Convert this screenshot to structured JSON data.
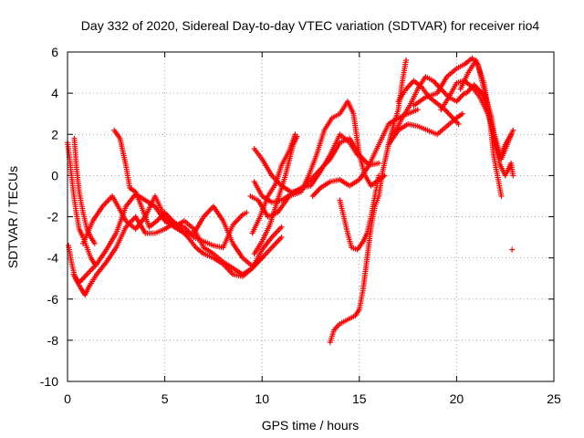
{
  "chart_data": {
    "type": "scatter",
    "title": "Day 332 of 2020, Sidereal Day-to-day VTEC variation (SDTVAR) for receiver rio4",
    "xlabel": "GPS time / hours",
    "ylabel": "SDTVAR / TECUs",
    "xlim": [
      0,
      25
    ],
    "ylim": [
      -10,
      6
    ],
    "x_ticks": [
      0,
      5,
      10,
      15,
      20,
      25
    ],
    "y_ticks": [
      -10,
      -8,
      -6,
      -4,
      -2,
      0,
      2,
      4,
      6
    ],
    "x_tick_labels": [
      "0",
      "5",
      "10",
      "15",
      "20",
      "25"
    ],
    "y_tick_labels": [
      "-10",
      "-8",
      "-6",
      "-4",
      "-2",
      "0",
      "2",
      "4",
      "6"
    ],
    "grid": true,
    "marker": "plus",
    "color": "#ff0000",
    "tracks": [
      [
        [
          0.0,
          1.6
        ],
        [
          0.15,
          0.5
        ],
        [
          0.3,
          -0.8
        ],
        [
          0.45,
          -1.8
        ],
        [
          0.6,
          -2.6
        ],
        [
          0.8,
          -3.0
        ],
        [
          1.0,
          -3.5
        ],
        [
          1.2,
          -4.0
        ],
        [
          1.4,
          -4.3
        ]
      ],
      [
        [
          0.35,
          1.8
        ],
        [
          0.45,
          0.5
        ],
        [
          0.6,
          -0.8
        ],
        [
          0.8,
          -1.8
        ],
        [
          1.0,
          -2.6
        ],
        [
          1.2,
          -3.0
        ],
        [
          1.4,
          -3.3
        ]
      ],
      [
        [
          0.05,
          -3.4
        ],
        [
          0.2,
          -4.2
        ],
        [
          0.4,
          -5.0
        ],
        [
          0.7,
          -5.5
        ],
        [
          0.9,
          -5.8
        ],
        [
          1.1,
          -5.4
        ],
        [
          1.5,
          -4.8
        ],
        [
          2.0,
          -4.2
        ],
        [
          2.5,
          -3.5
        ],
        [
          3.0,
          -2.5
        ],
        [
          3.5,
          -2.0
        ],
        [
          4.0,
          -2.8
        ],
        [
          4.5,
          -2.8
        ],
        [
          5.0,
          -2.6
        ],
        [
          5.5,
          -2.3
        ],
        [
          6.0,
          -2.5
        ],
        [
          6.5,
          -3.0
        ],
        [
          7.0,
          -3.2
        ],
        [
          7.5,
          -3.4
        ],
        [
          8.0,
          -3.5
        ],
        [
          8.5,
          -2.4
        ],
        [
          9.0,
          -1.9
        ],
        [
          9.2,
          -1.8
        ]
      ],
      [
        [
          0.3,
          -4.8
        ],
        [
          0.6,
          -5.2
        ],
        [
          1.0,
          -4.8
        ],
        [
          1.5,
          -4.3
        ],
        [
          2.0,
          -3.6
        ],
        [
          2.5,
          -2.8
        ],
        [
          3.0,
          -1.5
        ],
        [
          3.5,
          -0.9
        ],
        [
          4.0,
          -1.2
        ],
        [
          4.5,
          -1.5
        ],
        [
          5.0,
          -2.2
        ],
        [
          5.5,
          -2.5
        ],
        [
          6.0,
          -2.8
        ],
        [
          6.5,
          -2.8
        ],
        [
          7.0,
          -2.0
        ],
        [
          7.5,
          -1.5
        ],
        [
          8.0,
          -2.2
        ],
        [
          8.5,
          -3.3
        ],
        [
          9.0,
          -4.0
        ],
        [
          9.5,
          -4.4
        ],
        [
          10.0,
          -4.0
        ]
      ],
      [
        [
          0.8,
          -3.3
        ],
        [
          1.3,
          -2.2
        ],
        [
          1.8,
          -1.5
        ],
        [
          2.3,
          -1.0
        ],
        [
          2.6,
          -1.5
        ],
        [
          3.0,
          -2.2
        ],
        [
          3.5,
          -2.6
        ],
        [
          4.0,
          -2.0
        ],
        [
          4.5,
          -1.0
        ],
        [
          5.0,
          -2.0
        ],
        [
          5.5,
          -2.5
        ],
        [
          6.0,
          -2.2
        ],
        [
          6.5,
          -2.6
        ],
        [
          7.0,
          -3.5
        ],
        [
          7.5,
          -3.8
        ],
        [
          8.0,
          -4.2
        ],
        [
          8.5,
          -4.5
        ],
        [
          9.0,
          -4.8
        ],
        [
          9.5,
          -4.5
        ],
        [
          10.0,
          -4.0
        ],
        [
          10.5,
          -3.5
        ],
        [
          11.0,
          -3.0
        ]
      ],
      [
        [
          2.4,
          2.2
        ],
        [
          2.7,
          1.8
        ],
        [
          3.0,
          0.5
        ],
        [
          3.2,
          -0.6
        ],
        [
          3.5,
          -0.8
        ],
        [
          3.8,
          -1.5
        ],
        [
          4.2,
          -2.5
        ],
        [
          4.6,
          -2.2
        ],
        [
          5.0,
          -1.8
        ],
        [
          5.4,
          -2.2
        ],
        [
          5.8,
          -2.6
        ],
        [
          6.2,
          -3.0
        ],
        [
          6.6,
          -3.5
        ],
        [
          7.0,
          -3.8
        ],
        [
          7.5,
          -4.0
        ],
        [
          8.0,
          -4.3
        ],
        [
          8.5,
          -4.8
        ],
        [
          9.0,
          -4.9
        ],
        [
          9.5,
          -4.5
        ],
        [
          10.0,
          -3.6
        ],
        [
          10.5,
          -3.0
        ],
        [
          11.0,
          -2.5
        ]
      ],
      [
        [
          9.6,
          -3.8
        ],
        [
          10.0,
          -3.2
        ],
        [
          10.4,
          -2.4
        ],
        [
          10.8,
          -1.2
        ],
        [
          11.2,
          0.0
        ],
        [
          11.6,
          1.5
        ],
        [
          11.8,
          1.9
        ]
      ],
      [
        [
          9.5,
          -2.8
        ],
        [
          9.9,
          -2.0
        ],
        [
          10.3,
          -1.0
        ],
        [
          10.7,
          -0.4
        ],
        [
          11.0,
          0.5
        ],
        [
          11.4,
          1.2
        ],
        [
          11.7,
          2.0
        ]
      ],
      [
        [
          9.6,
          1.3
        ],
        [
          10.0,
          0.8
        ],
        [
          10.5,
          0.0
        ],
        [
          11.0,
          -0.5
        ],
        [
          11.5,
          -0.8
        ],
        [
          12.0,
          -0.7
        ],
        [
          12.5,
          -0.2
        ],
        [
          13.0,
          0.3
        ],
        [
          13.5,
          0.8
        ],
        [
          14.0,
          1.6
        ],
        [
          14.5,
          1.8
        ],
        [
          15.0,
          1.0
        ],
        [
          15.5,
          0.5
        ],
        [
          16.0,
          1.5
        ],
        [
          16.5,
          2.5
        ],
        [
          17.0,
          2.8
        ],
        [
          17.5,
          3.0
        ],
        [
          18.0,
          3.2
        ]
      ],
      [
        [
          9.6,
          -0.3
        ],
        [
          10.0,
          -1.0
        ],
        [
          10.5,
          -1.3
        ],
        [
          11.0,
          -1.2
        ],
        [
          11.5,
          -0.9
        ],
        [
          12.0,
          -0.6
        ],
        [
          12.5,
          -0.5
        ],
        [
          13.0,
          0.2
        ],
        [
          13.5,
          1.0
        ],
        [
          14.0,
          2.0
        ],
        [
          14.5,
          1.6
        ],
        [
          14.9,
          1.0
        ]
      ],
      [
        [
          9.4,
          -1.0
        ],
        [
          9.8,
          -1.2
        ],
        [
          10.3,
          -2.0
        ],
        [
          10.8,
          -1.8
        ],
        [
          11.4,
          -1.0
        ],
        [
          12.0,
          -0.8
        ],
        [
          12.4,
          0.0
        ],
        [
          12.8,
          1.0
        ],
        [
          13.2,
          2.2
        ],
        [
          13.6,
          2.8
        ],
        [
          14.0,
          3.0
        ],
        [
          14.4,
          3.6
        ],
        [
          14.7,
          3.0
        ],
        [
          15.0,
          1.0
        ],
        [
          15.3,
          0.0
        ],
        [
          15.6,
          -0.5
        ],
        [
          16.0,
          -0.2
        ],
        [
          16.3,
          0.0
        ]
      ],
      [
        [
          12.6,
          -1.0
        ],
        [
          13.0,
          -0.6
        ],
        [
          13.5,
          -0.3
        ],
        [
          14.0,
          -0.2
        ],
        [
          14.5,
          -0.5
        ],
        [
          15.0,
          -0.2
        ],
        [
          15.5,
          0.5
        ],
        [
          16.0,
          0.6
        ]
      ],
      [
        [
          14.0,
          -1.2
        ],
        [
          14.2,
          -2.0
        ],
        [
          14.4,
          -2.8
        ],
        [
          14.6,
          -3.5
        ],
        [
          14.9,
          -3.6
        ],
        [
          15.2,
          -3.2
        ],
        [
          15.4,
          -2.8
        ],
        [
          15.6,
          -2.0
        ],
        [
          15.8,
          -1.0
        ],
        [
          16.0,
          0.0
        ]
      ],
      [
        [
          13.5,
          -8.1
        ],
        [
          13.7,
          -7.5
        ],
        [
          14.0,
          -7.2
        ],
        [
          14.4,
          -7.0
        ],
        [
          14.8,
          -6.8
        ],
        [
          15.0,
          -6.5
        ],
        [
          15.2,
          -5.5
        ],
        [
          15.4,
          -4.0
        ],
        [
          15.6,
          -2.5
        ],
        [
          15.8,
          -1.5
        ],
        [
          16.0,
          -1.0
        ],
        [
          16.2,
          0.2
        ],
        [
          16.5,
          1.5
        ],
        [
          16.8,
          2.6
        ],
        [
          17.0,
          3.2
        ],
        [
          17.2,
          4.5
        ],
        [
          17.4,
          5.6
        ]
      ],
      [
        [
          16.5,
          1.5
        ],
        [
          17.0,
          2.2
        ],
        [
          17.5,
          2.5
        ],
        [
          18.0,
          2.4
        ],
        [
          18.5,
          2.2
        ],
        [
          19.0,
          2.0
        ],
        [
          19.5,
          2.4
        ],
        [
          20.0,
          2.8
        ],
        [
          20.3,
          3.0
        ]
      ],
      [
        [
          16.8,
          2.0
        ],
        [
          17.2,
          2.8
        ],
        [
          17.6,
          3.4
        ],
        [
          18.0,
          4.2
        ],
        [
          18.4,
          4.8
        ],
        [
          18.8,
          4.6
        ],
        [
          19.2,
          4.2
        ],
        [
          19.6,
          3.8
        ],
        [
          20.0,
          3.6
        ],
        [
          20.4,
          4.0
        ]
      ],
      [
        [
          17.0,
          3.6
        ],
        [
          17.4,
          4.2
        ],
        [
          17.8,
          4.6
        ],
        [
          18.2,
          4.3
        ],
        [
          18.6,
          3.8
        ],
        [
          19.0,
          3.5
        ],
        [
          19.4,
          3.2
        ],
        [
          19.8,
          2.8
        ],
        [
          20.1,
          2.5
        ]
      ],
      [
        [
          17.8,
          3.4
        ],
        [
          18.4,
          3.8
        ],
        [
          19.0,
          4.0
        ],
        [
          19.5,
          4.8
        ],
        [
          20.0,
          5.2
        ],
        [
          20.4,
          5.4
        ],
        [
          20.8,
          5.7
        ],
        [
          21.1,
          5.4
        ],
        [
          21.3,
          4.6
        ],
        [
          21.5,
          3.8
        ],
        [
          21.8,
          2.8
        ],
        [
          22.0,
          1.5
        ],
        [
          22.2,
          0.6
        ],
        [
          22.5,
          0.0
        ],
        [
          22.8,
          0.6
        ],
        [
          22.9,
          0.0
        ]
      ],
      [
        [
          19.2,
          3.2
        ],
        [
          19.6,
          3.8
        ],
        [
          20.0,
          4.5
        ],
        [
          20.4,
          4.6
        ],
        [
          20.8,
          4.3
        ],
        [
          21.2,
          3.8
        ],
        [
          21.6,
          3.0
        ],
        [
          22.0,
          1.8
        ],
        [
          22.3,
          0.8
        ],
        [
          22.6,
          1.5
        ],
        [
          22.9,
          2.2
        ]
      ],
      [
        [
          20.2,
          4.2
        ],
        [
          20.6,
          5.0
        ],
        [
          21.0,
          5.6
        ],
        [
          21.4,
          4.5
        ],
        [
          21.7,
          2.8
        ],
        [
          21.9,
          1.0
        ],
        [
          22.1,
          0.0
        ],
        [
          22.3,
          -1.0
        ]
      ],
      [
        [
          20.5,
          4.0
        ],
        [
          20.9,
          4.4
        ],
        [
          21.3,
          4.0
        ],
        [
          21.6,
          3.2
        ],
        [
          21.9,
          2.0
        ],
        [
          22.2,
          0.8
        ],
        [
          22.5,
          1.5
        ],
        [
          22.8,
          2.0
        ]
      ],
      [
        [
          22.85,
          -3.6
        ]
      ]
    ]
  }
}
